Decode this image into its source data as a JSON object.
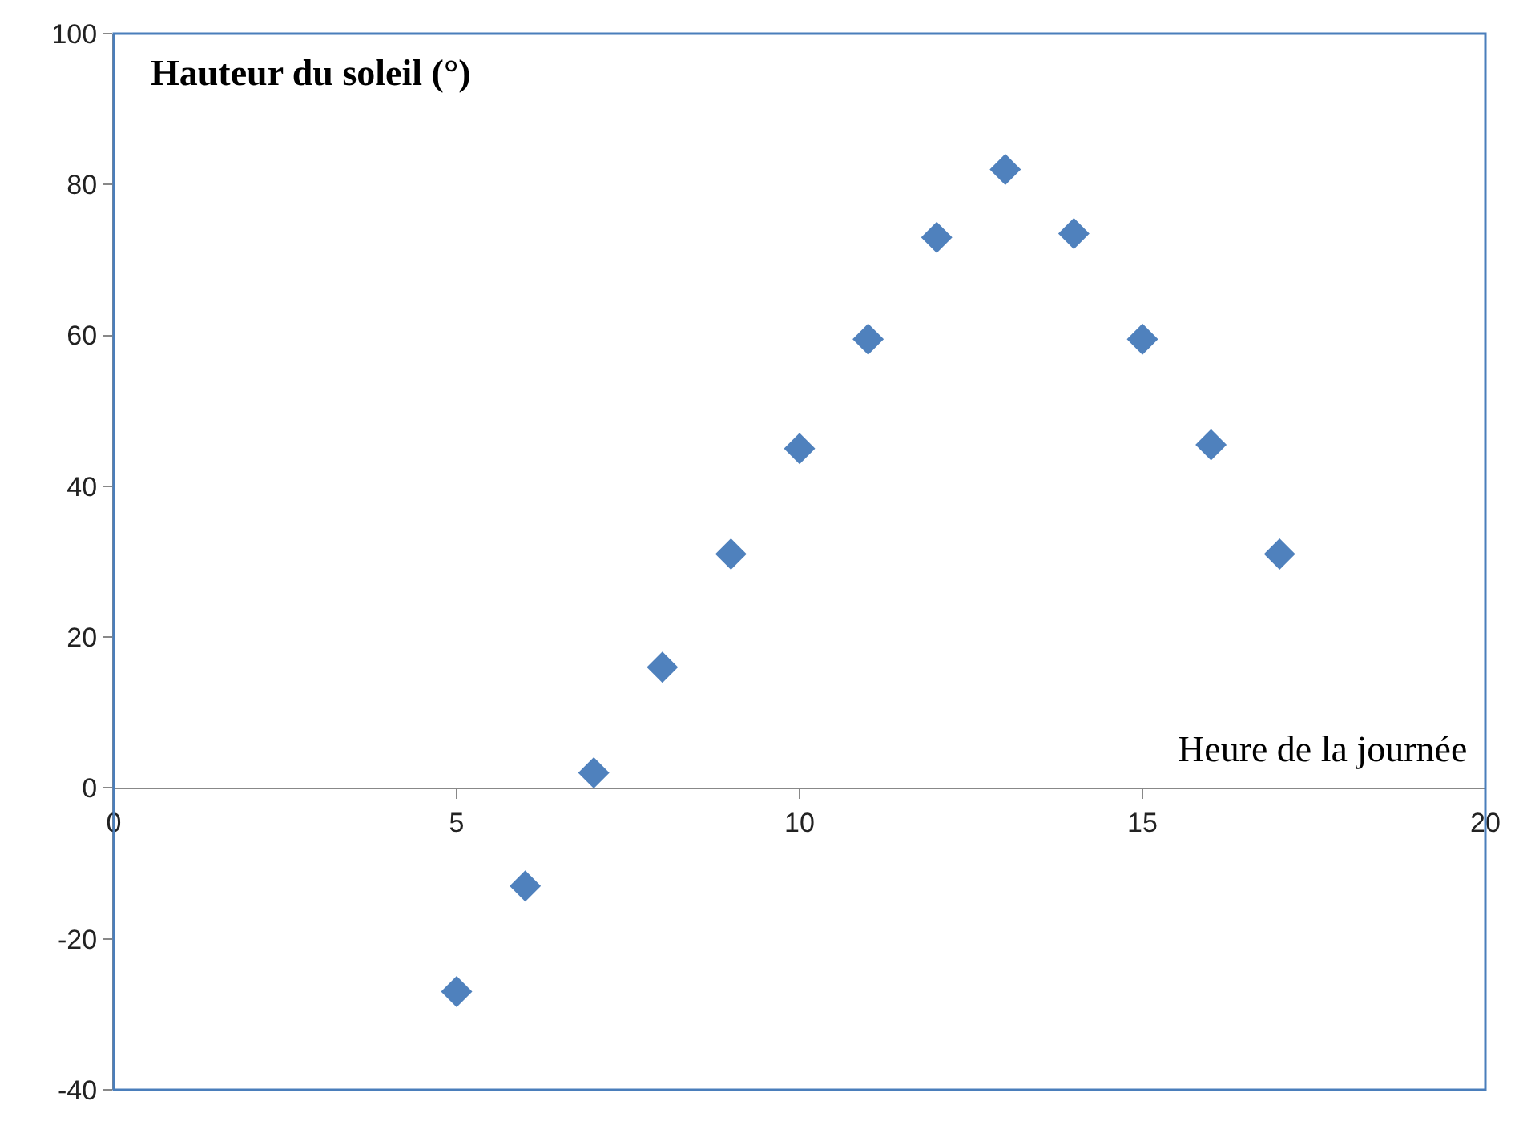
{
  "chart_data": {
    "type": "scatter",
    "title": "Hauteur du soleil (°)",
    "xlabel": "Heure de la journée",
    "x": [
      5,
      6,
      7,
      8,
      9,
      10,
      11,
      12,
      13,
      14,
      15,
      16,
      17
    ],
    "series": [
      {
        "color": "#4f81bd",
        "values": [
          -27,
          -13,
          2,
          16,
          31,
          45,
          59.5,
          73,
          82,
          73.5,
          59.5,
          45.5,
          31
        ]
      }
    ],
    "xlim": [
      0,
      20
    ],
    "xticks": [
      0,
      5,
      10,
      15,
      20
    ],
    "ylim": [
      -40,
      100
    ],
    "yticks": [
      -40,
      -20,
      0,
      20,
      40,
      60,
      80,
      100
    ],
    "marker": "diamond",
    "legend": false
  }
}
